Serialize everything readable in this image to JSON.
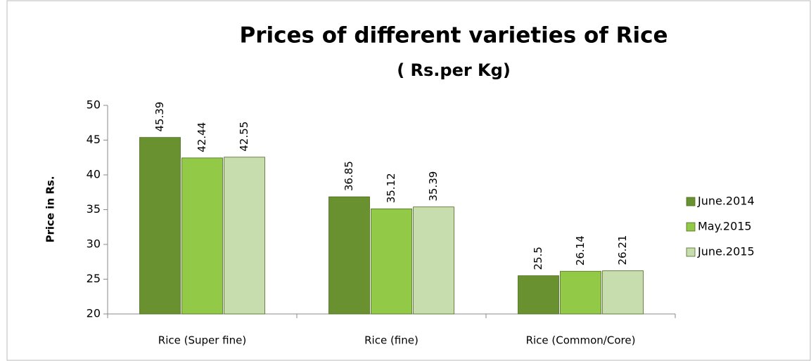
{
  "chart_data": {
    "type": "bar",
    "title": "Prices of different varieties of Rice",
    "subtitle": "( Rs.per Kg)",
    "y_label": "Price in Rs.",
    "categories": [
      "Rice (Super fine)",
      "Rice (fine)",
      "Rice (Common/Core)"
    ],
    "series": [
      {
        "name": "June.2014",
        "color": "#6a9130",
        "values": [
          45.39,
          36.85,
          25.5
        ]
      },
      {
        "name": "May.2015",
        "color": "#92c947",
        "values": [
          42.44,
          35.12,
          26.14
        ]
      },
      {
        "name": "June.2015",
        "color": "#c8ddad",
        "values": [
          42.55,
          35.39,
          26.21
        ]
      }
    ],
    "ylim": [
      20,
      50
    ],
    "yticks": [
      20,
      25,
      30,
      35,
      40,
      45,
      50
    ],
    "grid": false,
    "legend": "right"
  }
}
